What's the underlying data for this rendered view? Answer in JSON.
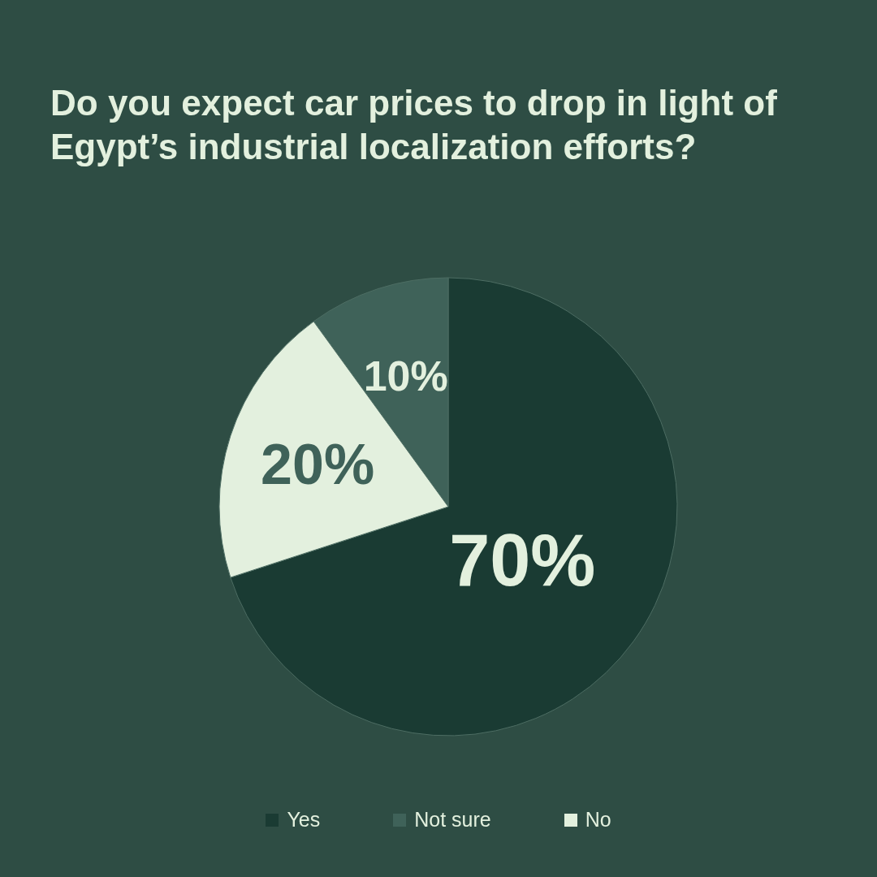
{
  "chart_data": {
    "type": "pie",
    "title": "Do you expect car prices to drop in light of Egypt’s industrial localization efforts?",
    "categories": [
      "Yes",
      "Not sure",
      "No"
    ],
    "values": [
      70,
      10,
      20
    ],
    "colors": [
      "#1a3b33",
      "#3f6259",
      "#e3f0de"
    ],
    "value_labels": [
      "70%",
      "10%",
      "20%"
    ],
    "legend": "bottom"
  }
}
